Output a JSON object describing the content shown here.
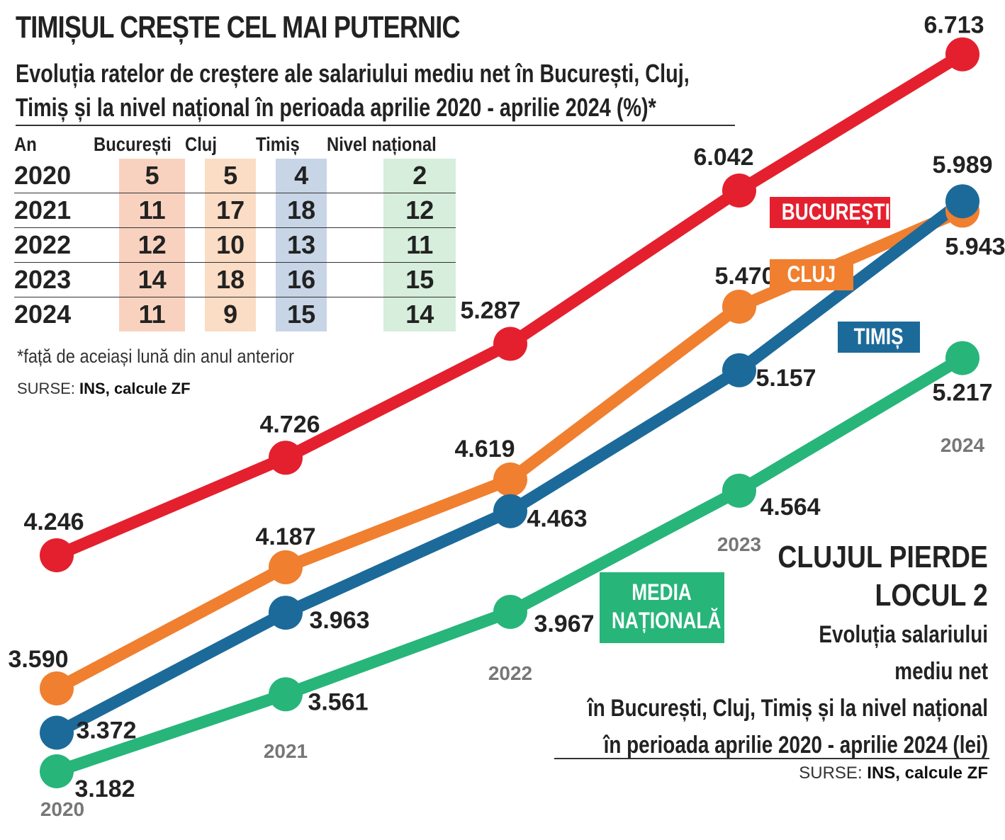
{
  "title": "TIMIȘUL CREȘTE CEL MAI PUTERNIC",
  "subtitle_line1": "Evoluția ratelor de creștere ale salariului mediu net în București, Cluj,",
  "subtitle_line2": "Timiș și la nivel național în perioada aprilie 2020 - aprilie 2024 (%)*",
  "table": {
    "headers": [
      "An",
      "București",
      "Cluj",
      "Timiș",
      "Nivel național"
    ],
    "rows": [
      [
        "2020",
        "5",
        "5",
        "4",
        "2"
      ],
      [
        "2021",
        "11",
        "17",
        "18",
        "12"
      ],
      [
        "2022",
        "12",
        "10",
        "13",
        "11"
      ],
      [
        "2023",
        "14",
        "18",
        "16",
        "15"
      ],
      [
        "2024",
        "11",
        "9",
        "15",
        "14"
      ]
    ]
  },
  "footnote": "*față de aceiași lună din anul anterior",
  "sources_label": "SURSE:",
  "sources_value": "INS, calcule ZF",
  "tags": {
    "bucuresti": "BUCUREȘTI",
    "cluj": "CLUJ",
    "timis": "TIMIȘ",
    "media_line1": "MEDIA",
    "media_line2": "NAȚIONALĂ"
  },
  "right_title_line1": "CLUJUL PIERDE",
  "right_title_line2": "LOCUL 2",
  "right_sub_line1": "Evoluția salariului",
  "right_sub_line2": "mediu net",
  "right_sub_line3": "în București, Cluj, Timiș și la nivel național",
  "right_sub_line4": "în perioada aprilie 2020 - aprilie 2024 (lei)",
  "chart_data": {
    "type": "line",
    "x": [
      "2020",
      "2021",
      "2022",
      "2023",
      "2024"
    ],
    "series": [
      {
        "name": "BUCUREȘTI",
        "color": "#e4202e",
        "values": [
          4246,
          4726,
          5287,
          6042,
          6713
        ],
        "labels": [
          "4.246",
          "4.726",
          "5.287",
          "6.042",
          "6.713"
        ]
      },
      {
        "name": "CLUJ",
        "color": "#f07f2f",
        "values": [
          3590,
          4187,
          4619,
          5470,
          5943
        ],
        "labels": [
          "3.590",
          "4.187",
          "4.619",
          "5.470",
          "5.943"
        ]
      },
      {
        "name": "TIMIȘ",
        "color": "#1c6a9a",
        "values": [
          3372,
          3963,
          4463,
          5157,
          5989
        ],
        "labels": [
          "3.372",
          "3.963",
          "4.463",
          "5.157",
          "5.989"
        ]
      },
      {
        "name": "MEDIA NAȚIONALĂ",
        "color": "#27b57a",
        "values": [
          3182,
          3561,
          3967,
          4564,
          5217
        ],
        "labels": [
          "3.182",
          "3.561",
          "3.967",
          "4.564",
          "5.217"
        ]
      }
    ],
    "legend": "inline labels"
  }
}
